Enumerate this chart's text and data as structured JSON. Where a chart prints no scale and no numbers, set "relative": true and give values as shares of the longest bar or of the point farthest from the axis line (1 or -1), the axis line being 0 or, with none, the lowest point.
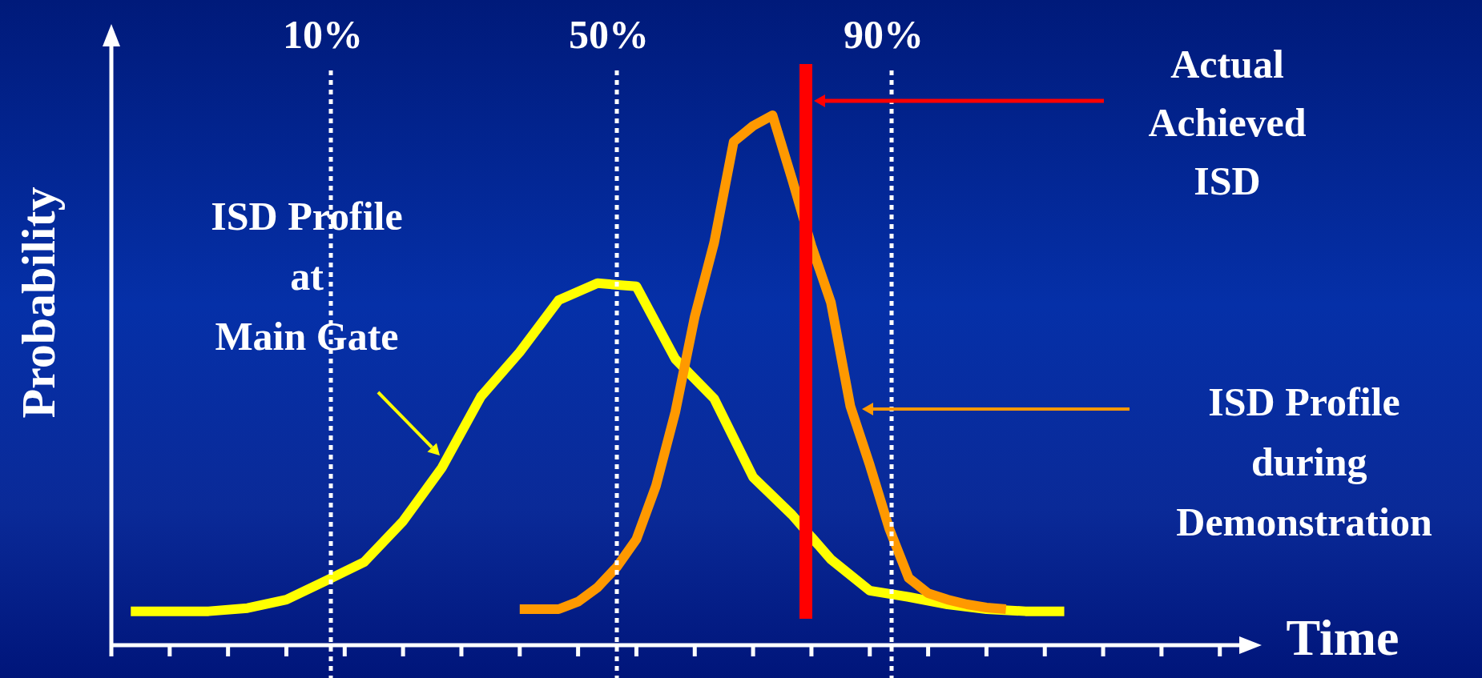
{
  "chart_data": {
    "type": "line",
    "relative": true,
    "xlabel": "Time",
    "ylabel": "Probability",
    "categories": [
      null,
      null,
      null,
      null,
      null,
      null,
      null,
      null,
      null,
      null,
      null,
      null,
      null,
      null,
      null,
      null,
      null,
      null,
      null,
      null,
      null,
      null,
      null,
      null,
      null,
      null,
      null,
      null,
      null,
      null,
      null,
      null,
      null,
      null,
      null,
      null,
      null,
      null,
      null,
      null,
      null,
      null,
      null,
      null,
      null,
      null,
      null,
      null,
      null,
      null,
      null,
      null,
      null,
      null,
      null,
      null,
      null,
      null,
      null
    ],
    "series": [
      {
        "name": "ISD Profile\nat\nMain Gate",
        "color": "#ffff00",
        "values": [
          null,
          0.064,
          null,
          null,
          null,
          0.064,
          null,
          0.07,
          null,
          0.086,
          null,
          0.121,
          null,
          0.157,
          null,
          0.234,
          null,
          0.335,
          null,
          0.469,
          null,
          0.553,
          null,
          0.651,
          null,
          0.683,
          null,
          0.677,
          null,
          0.54,
          null,
          0.465,
          null,
          0.317,
          null,
          0.246,
          null,
          0.162,
          null,
          0.103,
          null,
          0.091,
          null,
          0.077,
          null,
          0.068,
          null,
          0.064,
          null,
          0.064,
          null,
          null,
          null,
          null,
          null,
          null,
          null,
          null,
          null
        ]
      },
      {
        "name": "ISD Profile\n during\nDemonstration",
        "color": "#ff9900",
        "values": [
          null,
          null,
          null,
          null,
          null,
          null,
          null,
          null,
          null,
          null,
          null,
          null,
          null,
          null,
          null,
          null,
          null,
          null,
          null,
          null,
          null,
          0.068,
          null,
          0.068,
          0.082,
          0.109,
          0.148,
          0.2,
          0.3,
          0.44,
          0.62,
          0.76,
          0.95,
          0.98,
          1,
          0.88,
          0.754,
          0.647,
          0.451,
          0.34,
          0.22,
          0.127,
          0.098,
          0.086,
          0.077,
          0.071,
          0.068,
          null,
          null,
          null,
          null,
          null,
          null,
          null,
          null,
          null,
          null,
          null,
          null
        ]
      }
    ],
    "annotations": [
      "10%",
      "50%",
      "90%",
      "Actual\nAchieved\nISD"
    ],
    "marker": "none",
    "line_style": "solid"
  }
}
